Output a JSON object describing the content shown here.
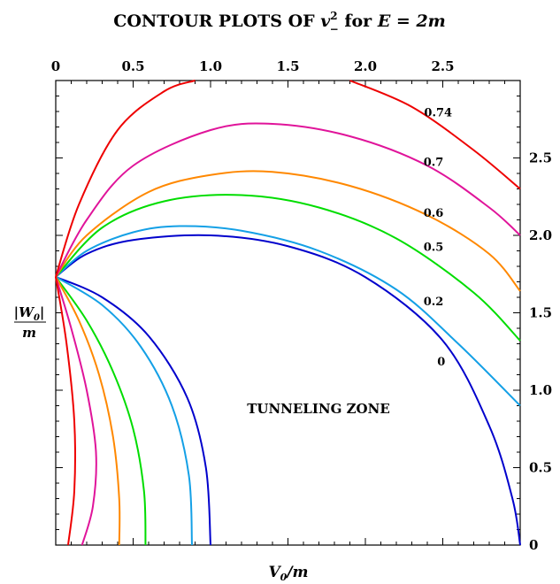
{
  "chart_data": {
    "type": "line",
    "title_main": "CONTOUR PLOTS OF ",
    "title_var": "v",
    "title_sup": "2",
    "title_sub": "−",
    "title_for": " for ",
    "title_eq": "E = 2m",
    "xlabel_num": "V",
    "xlabel_sub": "0",
    "xlabel_den": "/m",
    "ylabel_num": "|W",
    "ylabel_sub": "0",
    "ylabel_num_end": "|",
    "ylabel_den": "m",
    "x_ticks": [
      "0",
      "0.5",
      "1.0",
      "1.5",
      "2.0",
      "2.5"
    ],
    "y_ticks": [
      "0",
      "0.5",
      "1.0",
      "1.5",
      "2.0",
      "2.5"
    ],
    "xlim": [
      0,
      3.0
    ],
    "ylim": [
      0,
      3.0
    ],
    "zone_label": "TUNNELING ZONE",
    "colors": {
      "0": "#0000cc",
      "0.2": "#14a0e6",
      "0.5": "#00dd00",
      "0.6": "#ff8800",
      "0.7": "#e0149a",
      "0.74": "#ee0000"
    },
    "series": [
      {
        "name": "0",
        "color": "#0000cc",
        "upper": [
          [
            0,
            1.732
          ],
          [
            0.2,
            1.88
          ],
          [
            0.5,
            1.97
          ],
          [
            1.0,
            2.0
          ],
          [
            1.5,
            1.93
          ],
          [
            2.0,
            1.73
          ],
          [
            2.5,
            1.32
          ],
          [
            2.8,
            0.77
          ],
          [
            2.95,
            0.3
          ],
          [
            3.0,
            0
          ]
        ],
        "lower": [
          [
            0,
            1.732
          ],
          [
            0.3,
            1.6
          ],
          [
            0.6,
            1.35
          ],
          [
            0.85,
            0.95
          ],
          [
            0.97,
            0.5
          ],
          [
            1.0,
            0
          ]
        ]
      },
      {
        "name": "0.2",
        "color": "#14a0e6",
        "upper": [
          [
            0,
            1.732
          ],
          [
            0.2,
            1.9
          ],
          [
            0.5,
            2.02
          ],
          [
            0.8,
            2.06
          ],
          [
            1.2,
            2.03
          ],
          [
            1.7,
            1.9
          ],
          [
            2.2,
            1.65
          ],
          [
            2.6,
            1.3
          ],
          [
            3.0,
            0.9
          ]
        ],
        "lower": [
          [
            0,
            1.732
          ],
          [
            0.3,
            1.55
          ],
          [
            0.55,
            1.28
          ],
          [
            0.75,
            0.9
          ],
          [
            0.86,
            0.45
          ],
          [
            0.88,
            0
          ]
        ]
      },
      {
        "name": "0.5",
        "color": "#00dd00",
        "upper": [
          [
            0,
            1.732
          ],
          [
            0.3,
            2.05
          ],
          [
            0.7,
            2.22
          ],
          [
            1.2,
            2.26
          ],
          [
            1.7,
            2.18
          ],
          [
            2.2,
            1.98
          ],
          [
            2.7,
            1.63
          ],
          [
            3.0,
            1.32
          ]
        ],
        "lower": [
          [
            0,
            1.732
          ],
          [
            0.2,
            1.45
          ],
          [
            0.37,
            1.12
          ],
          [
            0.5,
            0.75
          ],
          [
            0.57,
            0.35
          ],
          [
            0.58,
            0
          ]
        ]
      },
      {
        "name": "0.6",
        "color": "#ff8800",
        "upper": [
          [
            0,
            1.732
          ],
          [
            0.2,
            2.0
          ],
          [
            0.6,
            2.28
          ],
          [
            1.0,
            2.39
          ],
          [
            1.4,
            2.41
          ],
          [
            1.9,
            2.32
          ],
          [
            2.4,
            2.13
          ],
          [
            2.8,
            1.88
          ],
          [
            3.0,
            1.64
          ]
        ],
        "lower": [
          [
            0,
            1.732
          ],
          [
            0.15,
            1.45
          ],
          [
            0.28,
            1.1
          ],
          [
            0.37,
            0.7
          ],
          [
            0.41,
            0.3
          ],
          [
            0.41,
            0
          ]
        ]
      },
      {
        "name": "0.7",
        "color": "#e0149a",
        "upper": [
          [
            0,
            1.732
          ],
          [
            0.2,
            2.1
          ],
          [
            0.5,
            2.45
          ],
          [
            1.0,
            2.68
          ],
          [
            1.4,
            2.72
          ],
          [
            1.9,
            2.64
          ],
          [
            2.4,
            2.45
          ],
          [
            2.8,
            2.18
          ],
          [
            3.0,
            2.0
          ]
        ],
        "lower": [
          [
            0,
            1.732
          ],
          [
            0.1,
            1.4
          ],
          [
            0.2,
            1.0
          ],
          [
            0.26,
            0.6
          ],
          [
            0.24,
            0.25
          ],
          [
            0.17,
            0
          ]
        ]
      },
      {
        "name": "0.74",
        "color": "#ee0000",
        "upper": [
          [
            0,
            1.732
          ],
          [
            0.15,
            2.2
          ],
          [
            0.4,
            2.68
          ],
          [
            0.7,
            2.93
          ],
          [
            0.9,
            3.0
          ]
        ],
        "upper2": [
          [
            1.9,
            3.0
          ],
          [
            2.3,
            2.83
          ],
          [
            2.7,
            2.55
          ],
          [
            3.0,
            2.3
          ]
        ],
        "lower": [
          [
            0,
            1.732
          ],
          [
            0.07,
            1.3
          ],
          [
            0.12,
            0.8
          ],
          [
            0.12,
            0.35
          ],
          [
            0.08,
            0
          ]
        ]
      }
    ]
  }
}
